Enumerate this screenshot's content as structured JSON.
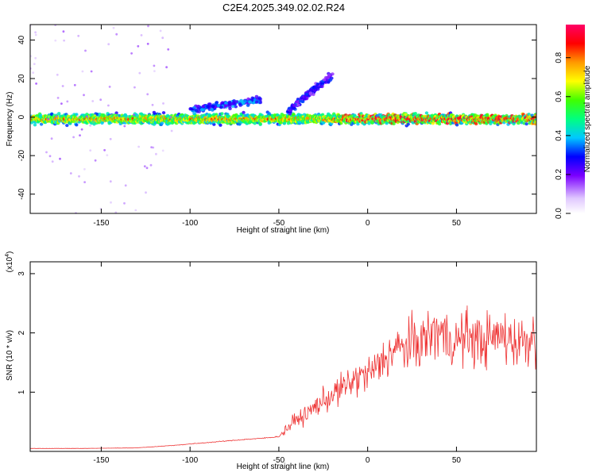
{
  "title": "C2E4.2025.349.02.02.R24",
  "chart_data": [
    {
      "type": "heatmap",
      "xlabel": "Height of straight line (km)",
      "ylabel": "Frequency (Hz)",
      "xlim": [
        -190,
        95
      ],
      "ylim": [
        -50,
        48
      ],
      "xticks": [
        -150,
        -100,
        -50,
        0,
        50
      ],
      "yticks": [
        -40,
        -20,
        0,
        20,
        40
      ],
      "colorbar": {
        "label": "Normalized spectral amplitude",
        "range": [
          0.0,
          0.97
        ],
        "ticks": [
          0.0,
          0.2,
          0.4,
          0.6,
          0.8
        ],
        "tick_labels": [
          "0.0",
          "0.2",
          "0.4",
          "0.6",
          "0.8"
        ]
      },
      "features": [
        {
          "name": "main-band",
          "x_range": [
            -190,
            95
          ],
          "center_freq": -1,
          "freq_halfwidth": 4,
          "peak_amplitude": 0.9
        },
        {
          "name": "rising-branch",
          "x_start": -100,
          "x_end": -60,
          "freq_start": 4,
          "freq_end": 9,
          "amplitude": 0.3
        },
        {
          "name": "rising-branch-2",
          "x_start": -45,
          "x_end": -20,
          "freq_start": 3,
          "freq_end": 22,
          "amplitude": 0.25
        }
      ]
    },
    {
      "type": "line",
      "xlabel": "Height of straight line (km)",
      "ylabel": "SNR (10 * v/v)",
      "y_scale_label": "(x10",
      "y_scale_exponent": "4",
      "y_scale_close": ")",
      "xlim": [
        -190,
        95
      ],
      "ylim": [
        0,
        3.2
      ],
      "xticks": [
        -150,
        -100,
        -50,
        0,
        50
      ],
      "yticks": [
        1,
        2,
        3
      ],
      "series": [
        {
          "name": "SNR",
          "color": "#ee3333",
          "x": [
            -190,
            -160,
            -130,
            -110,
            -90,
            -70,
            -60,
            -50,
            -45,
            -40,
            -35,
            -30,
            -25,
            -20,
            -15,
            -10,
            -5,
            0,
            5,
            10,
            15,
            20,
            25,
            30,
            35,
            40,
            45,
            50,
            55,
            60,
            65,
            70,
            75,
            80,
            85,
            90,
            95
          ],
          "y": [
            0.05,
            0.05,
            0.06,
            0.1,
            0.15,
            0.2,
            0.22,
            0.25,
            0.4,
            0.55,
            0.6,
            0.75,
            0.85,
            0.95,
            1.05,
            1.15,
            1.25,
            1.3,
            1.4,
            1.6,
            1.7,
            1.75,
            1.8,
            1.85,
            1.95,
            2.05,
            1.9,
            1.85,
            1.95,
            1.9,
            1.85,
            1.9,
            1.95,
            1.9,
            1.85,
            1.9,
            1.95
          ]
        }
      ]
    }
  ]
}
